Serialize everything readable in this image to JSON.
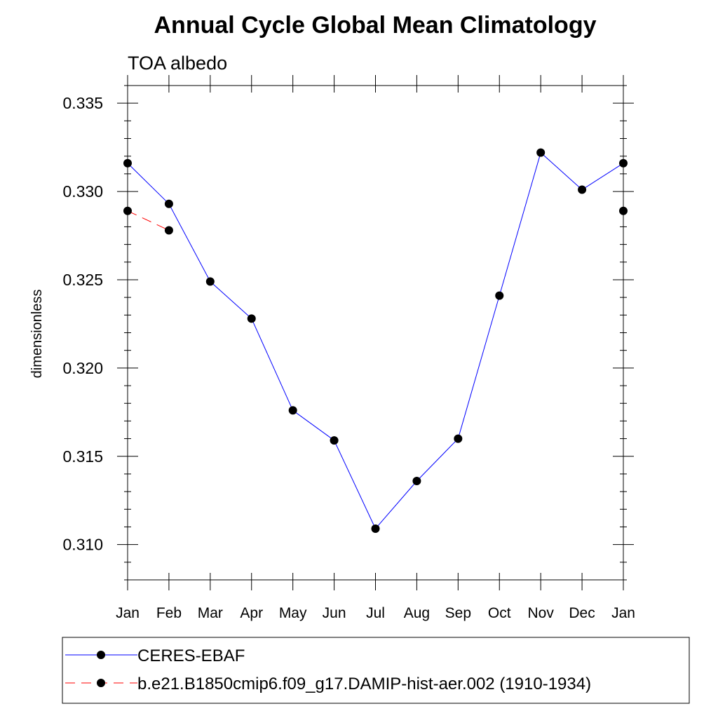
{
  "colors": {
    "ceres": "#0000ff",
    "model": "#ff0000",
    "marker": "#000000",
    "axis": "#000000",
    "background": "#ffffff"
  },
  "chart_data": {
    "type": "line",
    "title": "Annual Cycle Global Mean Climatology",
    "subtitle": "TOA albedo",
    "xlabel": "",
    "ylabel": "dimensionless",
    "ylim": [
      0.308,
      0.336
    ],
    "yticks": [
      0.31,
      0.315,
      0.32,
      0.325,
      0.33,
      0.335
    ],
    "ytick_labels": [
      "0.310",
      "0.315",
      "0.320",
      "0.325",
      "0.330",
      "0.335"
    ],
    "categories": [
      "Jan",
      "Feb",
      "Mar",
      "Apr",
      "May",
      "Jun",
      "Jul",
      "Aug",
      "Sep",
      "Oct",
      "Nov",
      "Dec",
      "Jan"
    ],
    "grid": false,
    "legend_position": "bottom",
    "series": [
      {
        "name": "CERES-EBAF",
        "color": "#0000ff",
        "line_style": "solid",
        "marker": "filled-circle",
        "values": [
          0.3316,
          0.3293,
          0.3249,
          0.3228,
          0.3176,
          0.3159,
          0.3109,
          0.3136,
          0.316,
          0.3241,
          0.3322,
          0.3301,
          0.3316
        ]
      },
      {
        "name": "b.e21.B1850cmip6.f09_g17.DAMIP-hist-aer.002 (1910-1934)",
        "color": "#ff0000",
        "line_style": "dashed",
        "marker": "filled-circle",
        "values": [
          0.3289,
          0.3278,
          null,
          null,
          null,
          null,
          null,
          null,
          null,
          null,
          null,
          null,
          0.3289
        ]
      }
    ]
  }
}
